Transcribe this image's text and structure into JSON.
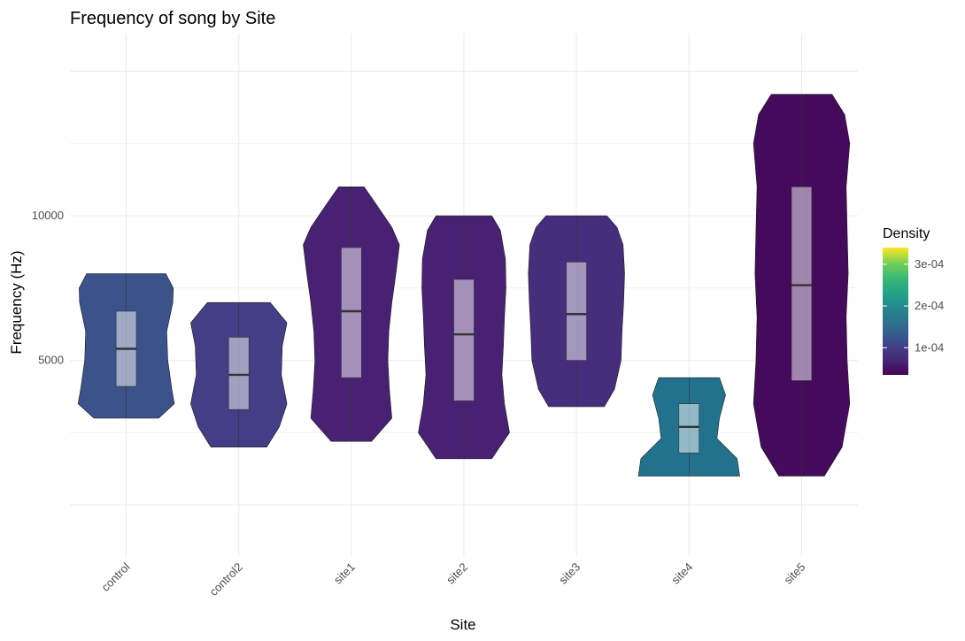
{
  "chart_data": {
    "type": "violin",
    "title": "Frequency of song by Site",
    "xlabel": "Site",
    "ylabel": "Frequency (Hz)",
    "ylim": [
      -1800,
      16300
    ],
    "yticks": [
      5000,
      10000
    ],
    "categories": [
      "control",
      "control2",
      "site1",
      "site2",
      "site3",
      "site4",
      "site5"
    ],
    "grid": true,
    "legend": {
      "title": "Density",
      "position": "right",
      "colorscale": "viridis",
      "range": [
        3.5e-05,
        0.00034
      ],
      "tick_values": [
        0.0001,
        0.0002,
        0.0003
      ],
      "tick_labels": [
        "1e-04",
        "2e-04",
        "3e-04"
      ]
    },
    "violins": [
      {
        "site": "control",
        "density": 0.000105,
        "fill": "#3b528b",
        "profile": [
          [
            3000,
            0.64
          ],
          [
            3500,
            0.95
          ],
          [
            4000,
            0.9
          ],
          [
            5000,
            0.82
          ],
          [
            6000,
            0.8
          ],
          [
            7000,
            0.92
          ],
          [
            7500,
            0.93
          ],
          [
            8000,
            0.78
          ]
        ],
        "box": {
          "q1": 4100,
          "median": 5400,
          "q3": 6700
        }
      },
      {
        "site": "control2",
        "density": 0.0001,
        "fill": "#433e85",
        "profile": [
          [
            2000,
            0.55
          ],
          [
            2700,
            0.8
          ],
          [
            3500,
            0.95
          ],
          [
            4500,
            0.84
          ],
          [
            5500,
            0.86
          ],
          [
            6300,
            0.95
          ],
          [
            7000,
            0.62
          ]
        ],
        "box": {
          "q1": 3300,
          "median": 4500,
          "q3": 5800
        }
      },
      {
        "site": "site1",
        "density": 7e-05,
        "fill": "#482173",
        "profile": [
          [
            2200,
            0.4
          ],
          [
            3000,
            0.8
          ],
          [
            4000,
            0.75
          ],
          [
            5000,
            0.72
          ],
          [
            6000,
            0.74
          ],
          [
            7000,
            0.8
          ],
          [
            8000,
            0.88
          ],
          [
            9000,
            0.95
          ],
          [
            9600,
            0.8
          ],
          [
            10500,
            0.45
          ],
          [
            11000,
            0.25
          ]
        ],
        "box": {
          "q1": 4400,
          "median": 6700,
          "q3": 8900
        }
      },
      {
        "site": "site2",
        "density": 7e-05,
        "fill": "#482173",
        "profile": [
          [
            1600,
            0.55
          ],
          [
            2500,
            0.9
          ],
          [
            3500,
            0.8
          ],
          [
            4500,
            0.75
          ],
          [
            5500,
            0.78
          ],
          [
            6500,
            0.8
          ],
          [
            7500,
            0.83
          ],
          [
            8500,
            0.82
          ],
          [
            9500,
            0.72
          ],
          [
            10000,
            0.55
          ]
        ],
        "box": {
          "q1": 3600,
          "median": 5900,
          "q3": 7800
        }
      },
      {
        "site": "site3",
        "density": 7.8e-05,
        "fill": "#472e7c",
        "profile": [
          [
            3400,
            0.55
          ],
          [
            4000,
            0.75
          ],
          [
            5000,
            0.88
          ],
          [
            6000,
            0.9
          ],
          [
            7000,
            0.93
          ],
          [
            8000,
            0.95
          ],
          [
            9000,
            0.92
          ],
          [
            9600,
            0.8
          ],
          [
            10000,
            0.6
          ]
        ],
        "box": {
          "q1": 5000,
          "median": 6600,
          "q3": 8400
        }
      },
      {
        "site": "site4",
        "density": 0.00017,
        "fill": "#22728e",
        "profile": [
          [
            1000,
            1.0
          ],
          [
            1600,
            0.95
          ],
          [
            2300,
            0.55
          ],
          [
            3000,
            0.6
          ],
          [
            3800,
            0.72
          ],
          [
            4400,
            0.6
          ]
        ],
        "box": {
          "q1": 1800,
          "median": 2700,
          "q3": 3500
        }
      },
      {
        "site": "site5",
        "density": 4e-05,
        "fill": "#440a5c",
        "profile": [
          [
            1000,
            0.45
          ],
          [
            2000,
            0.8
          ],
          [
            3500,
            0.95
          ],
          [
            5000,
            0.9
          ],
          [
            6500,
            0.88
          ],
          [
            8000,
            0.92
          ],
          [
            9500,
            0.9
          ],
          [
            11000,
            0.88
          ],
          [
            12500,
            0.95
          ],
          [
            13500,
            0.85
          ],
          [
            14200,
            0.6
          ]
        ],
        "box": {
          "q1": 4300,
          "median": 7600,
          "q3": 11000
        }
      }
    ],
    "colors": {
      "grid": "#ebebeb",
      "box_fill": "#ffffff",
      "box_opacity": 0.5,
      "stroke": "#333333",
      "background": "#ffffff"
    }
  }
}
